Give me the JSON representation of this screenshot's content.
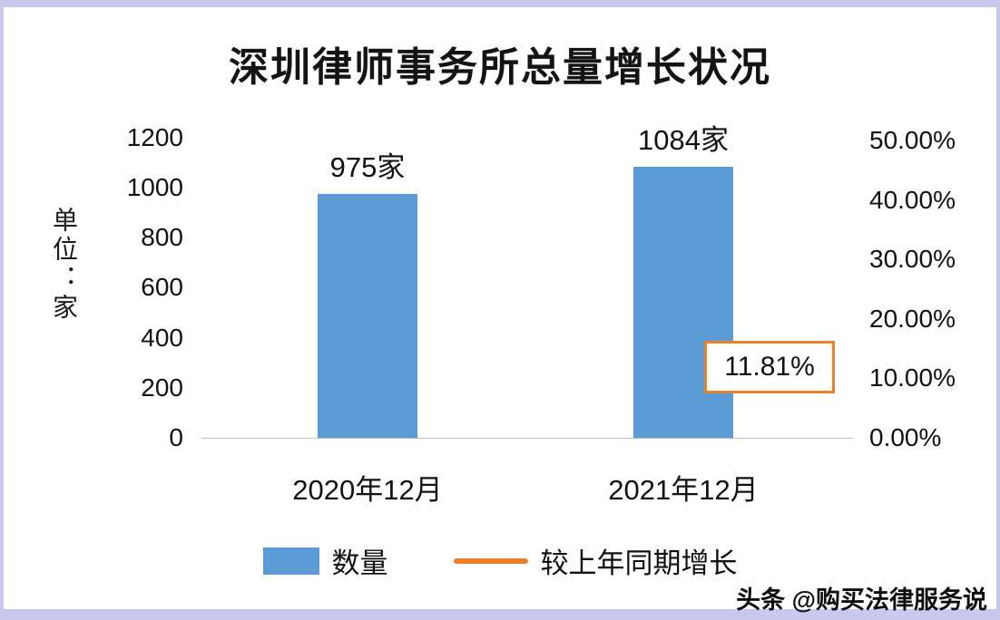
{
  "chart_data": {
    "type": "bar",
    "title": "深圳律师事务所总量增长状况",
    "categories": [
      "2020年12月",
      "2021年12月"
    ],
    "series": [
      {
        "name": "数量",
        "type": "bar",
        "values": [
          975,
          1084
        ],
        "data_labels": [
          "975家",
          "1084家"
        ],
        "color": "#5b9bd5"
      },
      {
        "name": "较上年同期增长",
        "type": "line",
        "values": [
          null,
          11.81
        ],
        "data_label": "11.81%",
        "color": "#e8802c"
      }
    ],
    "left_axis": {
      "label": "单位：家",
      "min": 0,
      "max": 1200,
      "ticks": [
        "1200",
        "1000",
        "800",
        "600",
        "400",
        "200",
        "0"
      ]
    },
    "right_axis": {
      "min": 0,
      "max": 50,
      "ticks": [
        "50.00%",
        "40.00%",
        "30.00%",
        "20.00%",
        "10.00%",
        "0.00%"
      ]
    },
    "legend_position": "bottom",
    "grid": "off"
  },
  "watermark": "头条 @购买法律服务说"
}
